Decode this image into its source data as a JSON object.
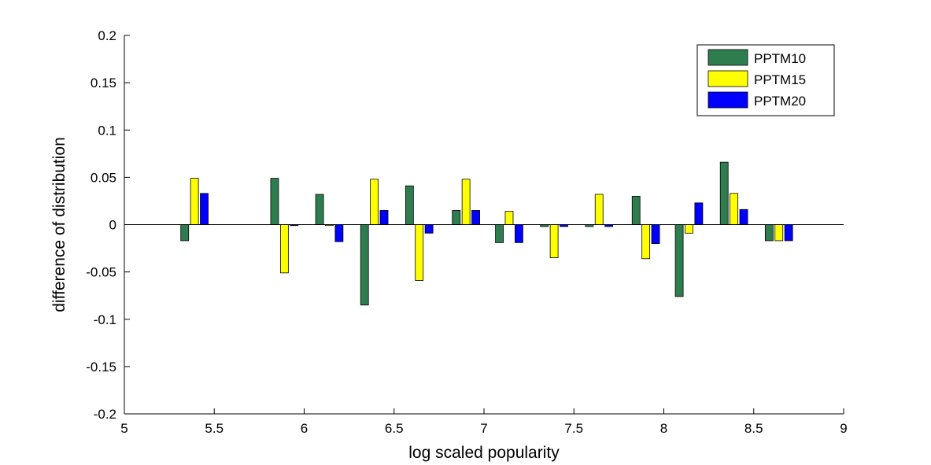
{
  "chart_data": {
    "type": "bar",
    "title": "",
    "xlabel": "log scaled popularity",
    "ylabel": "difference of distribution",
    "xlim": [
      5,
      9
    ],
    "ylim": [
      -0.2,
      0.2
    ],
    "xticks": [
      "5",
      "5.5",
      "6",
      "6.5",
      "7",
      "7.5",
      "8",
      "8.5",
      "9"
    ],
    "xtick_values": [
      5,
      5.5,
      6,
      6.5,
      7,
      7.5,
      8,
      8.5,
      9
    ],
    "yticks": [
      "0.2",
      "0.15",
      "0.1",
      "0.05",
      "0",
      "-0.05",
      "-0.1",
      "-0.15",
      "-0.2"
    ],
    "ytick_values": [
      0.2,
      0.15,
      0.1,
      0.05,
      0,
      -0.05,
      -0.1,
      -0.15,
      -0.2
    ],
    "grid": false,
    "legend_position": "top-right",
    "x": [
      5.39,
      5.89,
      6.14,
      6.39,
      6.64,
      6.9,
      7.14,
      7.39,
      7.64,
      7.9,
      8.14,
      8.39,
      8.64
    ],
    "series": [
      {
        "name": "PPTM10",
        "color": "#2e7d4f",
        "values": [
          -0.017,
          0.049,
          0.032,
          -0.085,
          0.041,
          0.015,
          -0.019,
          -0.002,
          -0.002,
          0.03,
          -0.076,
          0.066,
          -0.017
        ]
      },
      {
        "name": "PPTM15",
        "color": "#ffff00",
        "values": [
          0.049,
          -0.051,
          -0.001,
          0.048,
          -0.059,
          0.048,
          0.014,
          -0.035,
          0.032,
          -0.036,
          -0.009,
          0.033,
          -0.017
        ]
      },
      {
        "name": "PPTM20",
        "color": "#0000ff",
        "values": [
          0.033,
          -0.001,
          -0.018,
          0.015,
          -0.009,
          0.015,
          -0.019,
          -0.002,
          -0.002,
          -0.02,
          0.023,
          0.016,
          -0.017
        ]
      }
    ]
  }
}
